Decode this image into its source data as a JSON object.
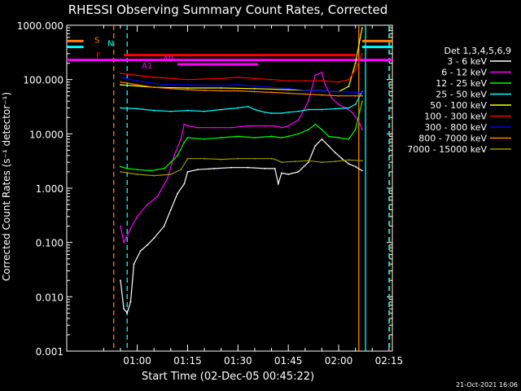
{
  "chart_data": {
    "type": "line",
    "title": "RHESSI Observing Summary Count Rates, Corrected",
    "xlabel": "Start Time (02-Dec-05 00:45:22)",
    "ylabel": "Corrected Count Rates (s⁻¹ detector⁻¹)",
    "yscale": "log",
    "ylim": [
      0.001,
      1000
    ],
    "xlim_minutes": [
      -6,
      91
    ],
    "x_ticks": [
      {
        "minute": 15,
        "label": "01:00"
      },
      {
        "minute": 30,
        "label": "01:15"
      },
      {
        "minute": 45,
        "label": "01:30"
      },
      {
        "minute": 60,
        "label": "01:45"
      },
      {
        "minute": 75,
        "label": "02:00"
      },
      {
        "minute": 90,
        "label": "02:15"
      }
    ],
    "y_ticks": [
      {
        "value": 0.001,
        "label": "0.001"
      },
      {
        "value": 0.01,
        "label": "0.010"
      },
      {
        "value": 0.1,
        "label": "0.100"
      },
      {
        "value": 1,
        "label": "1.000"
      },
      {
        "value": 10,
        "label": "10.000"
      },
      {
        "value": 100,
        "label": "100.000"
      },
      {
        "value": 1000,
        "label": "1000.000"
      }
    ],
    "legend_title": "Det 1,3,4,5,6,9",
    "legend_position": "right",
    "series": [
      {
        "name": "3 - 6 keV",
        "color": "#ffffff",
        "points": [
          [
            10,
            0.02
          ],
          [
            11,
            0.006
          ],
          [
            12,
            0.005
          ],
          [
            13,
            0.008
          ],
          [
            14,
            0.04
          ],
          [
            16,
            0.07
          ],
          [
            18,
            0.09
          ],
          [
            20,
            0.12
          ],
          [
            23,
            0.2
          ],
          [
            25,
            0.4
          ],
          [
            27,
            0.8
          ],
          [
            29,
            1.2
          ],
          [
            30,
            2.0
          ],
          [
            33,
            2.2
          ],
          [
            38,
            2.3
          ],
          [
            43,
            2.4
          ],
          [
            48,
            2.4
          ],
          [
            53,
            2.3
          ],
          [
            56,
            2.3
          ],
          [
            57,
            1.2
          ],
          [
            58,
            1.9
          ],
          [
            60,
            1.8
          ],
          [
            63,
            2.0
          ],
          [
            66,
            3.0
          ],
          [
            68,
            6.0
          ],
          [
            70,
            8.0
          ],
          [
            72,
            6.0
          ],
          [
            74,
            4.5
          ],
          [
            76,
            3.5
          ],
          [
            78,
            2.8
          ],
          [
            80,
            2.5
          ],
          [
            82,
            2.1
          ]
        ]
      },
      {
        "name": "6 - 12 keV",
        "color": "#ff00ff",
        "points": [
          [
            10,
            0.2
          ],
          [
            11,
            0.1
          ],
          [
            13,
            0.18
          ],
          [
            15,
            0.3
          ],
          [
            18,
            0.5
          ],
          [
            21,
            0.7
          ],
          [
            24,
            1.5
          ],
          [
            26,
            4.0
          ],
          [
            28,
            8.0
          ],
          [
            29,
            15
          ],
          [
            30,
            14
          ],
          [
            33,
            13
          ],
          [
            38,
            13
          ],
          [
            43,
            13
          ],
          [
            48,
            14
          ],
          [
            53,
            14
          ],
          [
            56,
            14
          ],
          [
            58,
            13
          ],
          [
            60,
            14
          ],
          [
            63,
            18
          ],
          [
            66,
            40
          ],
          [
            68,
            120
          ],
          [
            70,
            135
          ],
          [
            71,
            80
          ],
          [
            73,
            45
          ],
          [
            75,
            35
          ],
          [
            77,
            30
          ],
          [
            79,
            25
          ],
          [
            81,
            17
          ],
          [
            82,
            12
          ]
        ]
      },
      {
        "name": "12 - 25 keV",
        "color": "#00ff00",
        "points": [
          [
            10,
            2.5
          ],
          [
            12,
            2.3
          ],
          [
            15,
            2.2
          ],
          [
            19,
            2.1
          ],
          [
            21,
            2.2
          ],
          [
            23,
            2.3
          ],
          [
            25,
            3.0
          ],
          [
            27,
            4.0
          ],
          [
            29,
            7.0
          ],
          [
            30,
            8.5
          ],
          [
            35,
            8.0
          ],
          [
            40,
            8.5
          ],
          [
            45,
            9.0
          ],
          [
            50,
            8.5
          ],
          [
            55,
            9.0
          ],
          [
            58,
            8.5
          ],
          [
            60,
            9.0
          ],
          [
            63,
            10
          ],
          [
            66,
            12
          ],
          [
            68,
            15
          ],
          [
            70,
            12
          ],
          [
            72,
            9.0
          ],
          [
            75,
            8.5
          ],
          [
            78,
            8.0
          ],
          [
            80,
            12
          ],
          [
            82,
            40
          ]
        ]
      },
      {
        "name": "25 - 50 keV",
        "color": "#00ffff",
        "points": [
          [
            10,
            30
          ],
          [
            15,
            29
          ],
          [
            20,
            27
          ],
          [
            25,
            26
          ],
          [
            30,
            27
          ],
          [
            35,
            26
          ],
          [
            40,
            28
          ],
          [
            45,
            30
          ],
          [
            48,
            32
          ],
          [
            50,
            28
          ],
          [
            53,
            25
          ],
          [
            55,
            24
          ],
          [
            58,
            24
          ],
          [
            60,
            25
          ],
          [
            63,
            26
          ],
          [
            66,
            28
          ],
          [
            70,
            28
          ],
          [
            74,
            29
          ],
          [
            78,
            30
          ],
          [
            80,
            35
          ],
          [
            82,
            60
          ]
        ]
      },
      {
        "name": "50 - 100 keV",
        "color": "#ffff00",
        "points": [
          [
            10,
            80
          ],
          [
            20,
            72
          ],
          [
            30,
            70
          ],
          [
            40,
            70
          ],
          [
            50,
            68
          ],
          [
            60,
            65
          ],
          [
            70,
            62
          ],
          [
            75,
            60
          ],
          [
            78,
            75
          ],
          [
            80,
            200
          ],
          [
            82,
            900
          ]
        ]
      },
      {
        "name": "100 - 300 keV",
        "color": "#ff0000",
        "points": [
          [
            10,
            130
          ],
          [
            20,
            110
          ],
          [
            30,
            100
          ],
          [
            40,
            105
          ],
          [
            45,
            110
          ],
          [
            50,
            105
          ],
          [
            55,
            100
          ],
          [
            60,
            95
          ],
          [
            65,
            95
          ],
          [
            70,
            95
          ],
          [
            75,
            90
          ],
          [
            78,
            100
          ],
          [
            80,
            150
          ],
          [
            82,
            300
          ]
        ]
      },
      {
        "name": "300 - 800 keV",
        "color": "#0000ff",
        "points": [
          [
            10,
            110
          ],
          [
            15,
            95
          ],
          [
            20,
            85
          ],
          [
            25,
            80
          ],
          [
            30,
            80
          ],
          [
            35,
            78
          ],
          [
            40,
            78
          ],
          [
            45,
            80
          ],
          [
            50,
            76
          ],
          [
            55,
            72
          ],
          [
            60,
            68
          ],
          [
            65,
            64
          ],
          [
            70,
            62
          ],
          [
            75,
            60
          ],
          [
            80,
            58
          ],
          [
            82,
            58
          ]
        ]
      },
      {
        "name": "800 - 7000 keV",
        "color": "#ff8000",
        "points": [
          [
            10,
            90
          ],
          [
            15,
            80
          ],
          [
            20,
            72
          ],
          [
            25,
            68
          ],
          [
            30,
            65
          ],
          [
            35,
            63
          ],
          [
            40,
            62
          ],
          [
            45,
            62
          ],
          [
            50,
            60
          ],
          [
            55,
            58
          ],
          [
            60,
            56
          ],
          [
            65,
            54
          ],
          [
            70,
            52
          ],
          [
            75,
            50
          ],
          [
            80,
            50
          ],
          [
            82,
            50
          ]
        ]
      },
      {
        "name": "7000 - 15000 keV",
        "color": "#999900",
        "points": [
          [
            10,
            2.0
          ],
          [
            15,
            1.8
          ],
          [
            20,
            1.7
          ],
          [
            25,
            1.8
          ],
          [
            28,
            2.2
          ],
          [
            30,
            3.5
          ],
          [
            35,
            3.5
          ],
          [
            40,
            3.4
          ],
          [
            45,
            3.5
          ],
          [
            50,
            3.5
          ],
          [
            55,
            3.5
          ],
          [
            56,
            3.4
          ],
          [
            58,
            3.0
          ],
          [
            62,
            3.1
          ],
          [
            66,
            3.2
          ],
          [
            70,
            3.0
          ],
          [
            74,
            3.1
          ],
          [
            78,
            3.3
          ],
          [
            82,
            3.2
          ]
        ]
      }
    ],
    "state_bars": [
      {
        "label": "S",
        "color": "#ff8000",
        "log_y": 2.71,
        "spans": [
          [
            -6,
            -1
          ],
          [
            82,
            91
          ]
        ]
      },
      {
        "label": "N",
        "color": "#00ffff",
        "log_y": 2.6,
        "spans": [
          [
            -6,
            -1
          ],
          [
            82,
            91
          ]
        ]
      },
      {
        "label": "F",
        "color": "#ff0000",
        "log_y": 2.45,
        "spans": [
          [
            11,
            80
          ]
        ]
      },
      {
        "label": "A0",
        "color": "#ff00ff",
        "log_y": 2.36,
        "spans": [
          [
            -6,
            91
          ]
        ]
      },
      {
        "label": "A1",
        "color": "#ff00ff",
        "log_y": 2.28,
        "spans": [
          [
            27,
            51
          ]
        ]
      }
    ],
    "vertical_markers": [
      {
        "minute": 8,
        "color": "#ff8000",
        "style": "dashed"
      },
      {
        "minute": 12,
        "color": "#00ffff",
        "style": "dashed"
      },
      {
        "minute": 81,
        "color": "#ff8000",
        "style": "solid"
      },
      {
        "minute": 83,
        "color": "#00ffff",
        "style": "solid"
      },
      {
        "minute": 90,
        "color": "#00ffff",
        "style": "dashed"
      },
      {
        "minute": 90.2,
        "color": "#ff8000",
        "style": "dashed"
      }
    ]
  },
  "footer": {
    "date_stamp": "21-Oct-2021 16:06"
  }
}
